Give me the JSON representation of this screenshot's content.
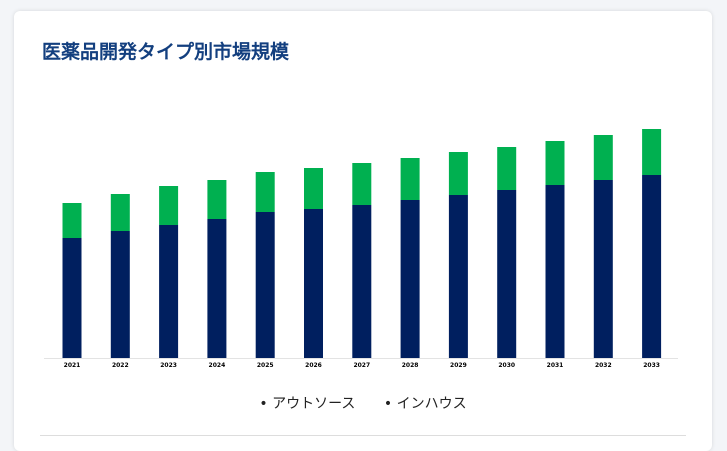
{
  "title": "医薬品開発タイプ別市場規模",
  "chart_data": {
    "type": "bar",
    "stacked": true,
    "title": "医薬品開発タイプ別市場規模",
    "categories": [
      "2021",
      "2022",
      "2023",
      "2024",
      "2025",
      "2026",
      "2027",
      "2028",
      "2029",
      "2030",
      "2031",
      "2032",
      "2033"
    ],
    "series": [
      {
        "name": "アウトソース",
        "color": "#001f5f",
        "values": [
          120,
          127,
          133,
          139,
          146,
          149,
          153,
          158,
          163,
          168,
          173,
          178,
          183
        ]
      },
      {
        "name": "インハウス",
        "color": "#00b050",
        "values": [
          35,
          37,
          39,
          39,
          40,
          41,
          42,
          42,
          43,
          43,
          44,
          45,
          46
        ]
      }
    ],
    "ylim": [
      0,
      230
    ],
    "y_axis_visible": false,
    "grid": false,
    "legend": "bottom"
  }
}
